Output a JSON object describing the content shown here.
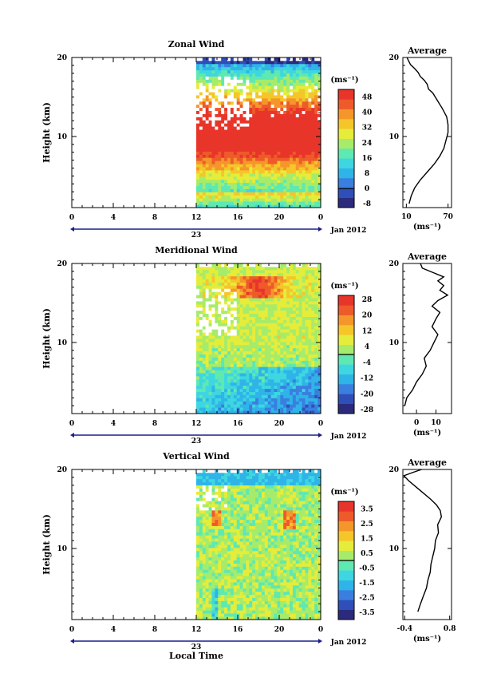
{
  "chart_data": [
    {
      "type": "heatmap",
      "title": "Zonal Wind",
      "ylabel": "Height (km)",
      "xticks": [
        "0",
        "4",
        "8",
        "12",
        "16",
        "20",
        "0"
      ],
      "yticks": [
        "10",
        "20"
      ],
      "ylim": [
        1,
        20
      ],
      "day_label": "23",
      "date_label": "Jan 2012",
      "data_start_hour": 12,
      "colorbar": {
        "unit": "(ms⁻¹)",
        "ticks": [
          "48",
          "40",
          "32",
          "24",
          "16",
          "8",
          "0",
          "-8"
        ],
        "min": -10,
        "max": 52
      },
      "profile": {
        "title": "Average",
        "xticks": [
          "10",
          "70"
        ],
        "xlim": [
          5,
          75
        ],
        "xlabel": "(ms⁻¹)",
        "yticks": [
          "10",
          "20"
        ],
        "points": [
          [
            14,
            1.5
          ],
          [
            17,
            2.5
          ],
          [
            22,
            3.5
          ],
          [
            30,
            4.5
          ],
          [
            40,
            5.5
          ],
          [
            50,
            6.5
          ],
          [
            58,
            7.5
          ],
          [
            64,
            8.5
          ],
          [
            67,
            9.5
          ],
          [
            70,
            10.5
          ],
          [
            70,
            11.5
          ],
          [
            68,
            12.5
          ],
          [
            62,
            13.5
          ],
          [
            55,
            14.5
          ],
          [
            48,
            15.5
          ],
          [
            42,
            16.0
          ],
          [
            40,
            16.6
          ],
          [
            36,
            17.1
          ],
          [
            30,
            17.6
          ],
          [
            27,
            18.1
          ],
          [
            22,
            18.6
          ],
          [
            16,
            19.1
          ],
          [
            13,
            19.6
          ],
          [
            11,
            20.0
          ]
        ]
      }
    },
    {
      "type": "heatmap",
      "title": "Meridional Wind",
      "ylabel": "Height (km)",
      "xticks": [
        "0",
        "4",
        "8",
        "12",
        "16",
        "20",
        "0"
      ],
      "yticks": [
        "10",
        "20"
      ],
      "ylim": [
        1,
        20
      ],
      "day_label": "23",
      "date_label": "Jan 2012",
      "data_start_hour": 12,
      "colorbar": {
        "unit": "(ms⁻¹)",
        "ticks": [
          "28",
          "20",
          "12",
          "4",
          "-4",
          "-12",
          "-20",
          "-28"
        ],
        "min": -30,
        "max": 30
      },
      "profile": {
        "title": "Average",
        "xticks": [
          "0",
          "10"
        ],
        "xlim": [
          -7,
          18
        ],
        "xlabel": "(ms⁻¹)",
        "yticks": [
          "10",
          "20"
        ],
        "points": [
          [
            -6,
            2.0
          ],
          [
            -5,
            3.0
          ],
          [
            -2,
            4.0
          ],
          [
            0,
            5.0
          ],
          [
            3,
            6.0
          ],
          [
            5,
            7.0
          ],
          [
            4,
            8.0
          ],
          [
            7,
            9.0
          ],
          [
            9,
            10.0
          ],
          [
            11,
            11.0
          ],
          [
            8,
            12.0
          ],
          [
            10,
            13.0
          ],
          [
            12,
            13.8
          ],
          [
            8,
            14.6
          ],
          [
            11,
            15.3
          ],
          [
            16,
            16.0
          ],
          [
            12,
            16.6
          ],
          [
            14,
            17.2
          ],
          [
            11,
            17.8
          ],
          [
            14,
            18.3
          ],
          [
            8,
            18.9
          ],
          [
            3,
            19.4
          ],
          [
            2,
            20.0
          ]
        ]
      }
    },
    {
      "type": "heatmap",
      "title": "Vertical Wind",
      "ylabel": "Height (km)",
      "xlabel": "Local Time",
      "xticks": [
        "0",
        "4",
        "8",
        "12",
        "16",
        "20",
        "0"
      ],
      "yticks": [
        "10",
        "20"
      ],
      "ylim": [
        1,
        20
      ],
      "day_label": "23",
      "date_label": "Jan 2012",
      "data_start_hour": 12,
      "colorbar": {
        "unit": "(ms⁻¹)",
        "ticks": [
          "3.5",
          "2.5",
          "1.5",
          "0.5",
          "-0.5",
          "-1.5",
          "-2.5",
          "-3.5"
        ],
        "min": -4,
        "max": 4
      },
      "profile": {
        "title": "Average",
        "xticks": [
          "-0.4",
          "0.8"
        ],
        "xlim": [
          -0.45,
          0.85
        ],
        "xlabel": "(ms⁻¹)",
        "yticks": [
          "10",
          "20"
        ],
        "points": [
          [
            -0.05,
            2.0
          ],
          [
            0.02,
            3.0
          ],
          [
            0.1,
            4.0
          ],
          [
            0.18,
            5.0
          ],
          [
            0.22,
            6.0
          ],
          [
            0.28,
            7.0
          ],
          [
            0.3,
            8.0
          ],
          [
            0.35,
            9.0
          ],
          [
            0.4,
            10.0
          ],
          [
            0.42,
            11.0
          ],
          [
            0.5,
            12.0
          ],
          [
            0.48,
            13.0
          ],
          [
            0.58,
            14.0
          ],
          [
            0.55,
            14.8
          ],
          [
            0.45,
            15.5
          ],
          [
            0.3,
            16.2
          ],
          [
            0.1,
            17.0
          ],
          [
            -0.1,
            17.8
          ],
          [
            -0.3,
            18.6
          ],
          [
            -0.42,
            19.2
          ],
          [
            -0.2,
            19.6
          ],
          [
            0.05,
            20.0
          ]
        ]
      }
    }
  ]
}
